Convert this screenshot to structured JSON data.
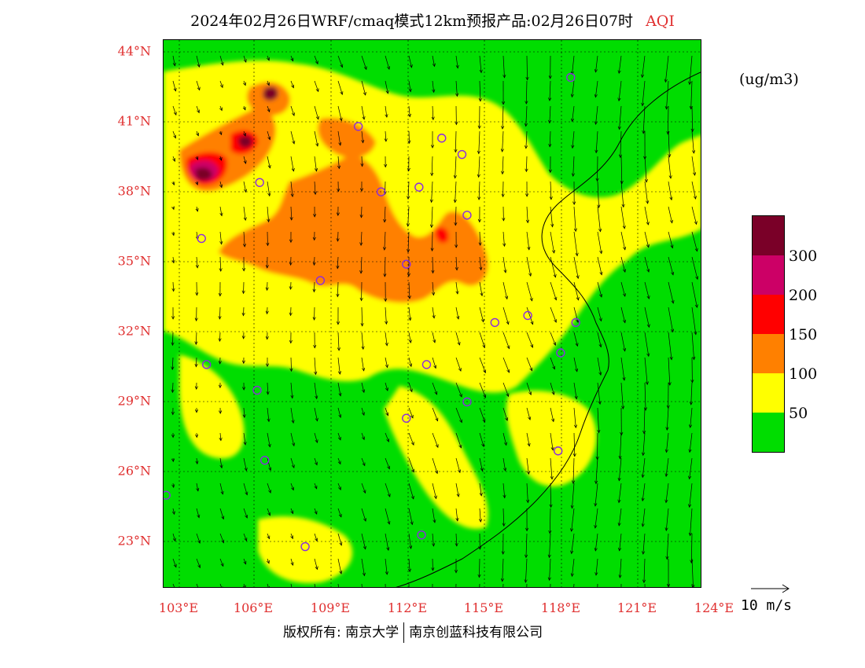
{
  "title": {
    "text": "2024年02月26日WRF/cmaq模式12km预报产品:02月26日07时",
    "variable": "AQI"
  },
  "unit": "(ug/m3)",
  "colors": {
    "good": "#00dd00",
    "moderate": "#ffff00",
    "usg": "#ff8000",
    "unhealthy": "#ff0000",
    "very_unhealthy": "#cc0066",
    "hazardous": "#7a0028",
    "axis_label": "#e03030",
    "station_marker": "#8a2be2"
  },
  "map": {
    "lat_labels": [
      "44°N",
      "41°N",
      "38°N",
      "35°N",
      "32°N",
      "29°N",
      "26°N",
      "23°N"
    ],
    "lon_labels": [
      "103°E",
      "106°E",
      "109°E",
      "112°E",
      "115°E",
      "118°E",
      "121°E",
      "124°E"
    ],
    "lat_range": [
      21,
      44.5
    ],
    "lon_range": [
      102.7,
      124
    ],
    "stations": [
      {
        "lon": 110.4,
        "lat": 40.8
      },
      {
        "lon": 113.7,
        "lat": 40.3
      },
      {
        "lon": 114.5,
        "lat": 39.6
      },
      {
        "lon": 118.8,
        "lat": 42.9
      },
      {
        "lon": 106.5,
        "lat": 38.4
      },
      {
        "lon": 111.3,
        "lat": 38.0
      },
      {
        "lon": 112.8,
        "lat": 38.2
      },
      {
        "lon": 114.7,
        "lat": 37.0
      },
      {
        "lon": 104.2,
        "lat": 36.0
      },
      {
        "lon": 112.3,
        "lat": 34.9
      },
      {
        "lon": 108.9,
        "lat": 34.2
      },
      {
        "lon": 115.8,
        "lat": 32.4
      },
      {
        "lon": 117.1,
        "lat": 32.7
      },
      {
        "lon": 119.0,
        "lat": 32.4
      },
      {
        "lon": 118.4,
        "lat": 31.1
      },
      {
        "lon": 104.4,
        "lat": 30.6
      },
      {
        "lon": 113.1,
        "lat": 30.6
      },
      {
        "lon": 106.4,
        "lat": 29.5
      },
      {
        "lon": 114.7,
        "lat": 29.0
      },
      {
        "lon": 112.3,
        "lat": 28.3
      },
      {
        "lon": 106.7,
        "lat": 26.5
      },
      {
        "lon": 118.3,
        "lat": 26.9
      },
      {
        "lon": 102.8,
        "lat": 25.0
      },
      {
        "lon": 108.3,
        "lat": 22.8
      },
      {
        "lon": 112.9,
        "lat": 23.3
      }
    ]
  },
  "legend": {
    "labels": [
      "300",
      "200",
      "150",
      "100",
      "50"
    ],
    "wind_reference": "10 m/s"
  },
  "copyright": {
    "left": "版权所有: 南京大学",
    "right": "南京创蓝科技有限公司"
  }
}
